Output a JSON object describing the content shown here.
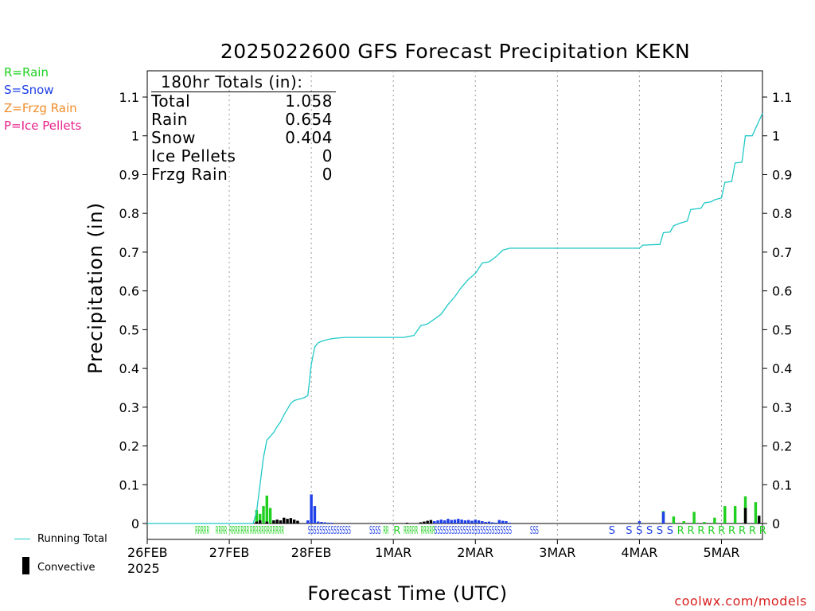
{
  "chart_data": {
    "type": "bar",
    "title": "2025022600 GFS Forecast Precipitation KEKN",
    "xlabel": "Forecast Time (UTC)",
    "ylabel": "Precipitation (in)",
    "ylim": [
      0,
      1.15
    ],
    "yticks": [
      "0",
      "0.1",
      "0.2",
      "0.3",
      "0.4",
      "0.5",
      "0.6",
      "0.7",
      "0.8",
      "0.9",
      "1",
      "1.1"
    ],
    "xlim_hours": [
      0,
      180
    ],
    "xticks": [
      {
        "hour": 0,
        "label": "26FEB"
      },
      {
        "hour": 24,
        "label": "27FEB"
      },
      {
        "hour": 48,
        "label": "28FEB"
      },
      {
        "hour": 72,
        "label": "1MAR"
      },
      {
        "hour": 96,
        "label": "2MAR"
      },
      {
        "hour": 120,
        "label": "3MAR"
      },
      {
        "hour": 144,
        "label": "4MAR"
      },
      {
        "hour": 168,
        "label": "5MAR"
      }
    ],
    "year_label": "2025",
    "grid": "vertical dotted at day boundaries",
    "series": [
      {
        "name": "Running Total",
        "type": "line",
        "color": "#20c8c8",
        "points": [
          [
            0,
            0
          ],
          [
            31,
            0
          ],
          [
            32,
            0.03
          ],
          [
            33,
            0.1
          ],
          [
            34,
            0.17
          ],
          [
            35,
            0.215
          ],
          [
            36,
            0.225
          ],
          [
            37,
            0.235
          ],
          [
            38,
            0.25
          ],
          [
            39,
            0.262
          ],
          [
            40,
            0.28
          ],
          [
            41,
            0.295
          ],
          [
            42,
            0.31
          ],
          [
            43,
            0.317
          ],
          [
            44,
            0.32
          ],
          [
            45,
            0.322
          ],
          [
            46,
            0.325
          ],
          [
            47,
            0.33
          ],
          [
            48,
            0.41
          ],
          [
            49,
            0.455
          ],
          [
            50,
            0.466
          ],
          [
            51,
            0.47
          ],
          [
            53,
            0.475
          ],
          [
            55,
            0.478
          ],
          [
            58,
            0.48
          ],
          [
            72,
            0.48
          ],
          [
            75,
            0.48
          ],
          [
            78,
            0.485
          ],
          [
            80,
            0.51
          ],
          [
            82,
            0.515
          ],
          [
            84,
            0.527
          ],
          [
            86,
            0.54
          ],
          [
            88,
            0.565
          ],
          [
            90,
            0.585
          ],
          [
            92,
            0.61
          ],
          [
            94,
            0.63
          ],
          [
            96,
            0.645
          ],
          [
            98,
            0.672
          ],
          [
            100,
            0.675
          ],
          [
            102,
            0.688
          ],
          [
            104,
            0.705
          ],
          [
            106,
            0.71
          ],
          [
            144,
            0.71
          ],
          [
            145,
            0.718
          ],
          [
            150,
            0.72
          ],
          [
            151,
            0.75
          ],
          [
            153,
            0.752
          ],
          [
            154,
            0.768
          ],
          [
            156,
            0.775
          ],
          [
            158,
            0.78
          ],
          [
            159,
            0.81
          ],
          [
            162,
            0.813
          ],
          [
            163,
            0.827
          ],
          [
            165,
            0.83
          ],
          [
            166,
            0.835
          ],
          [
            168,
            0.84
          ],
          [
            169,
            0.88
          ],
          [
            171,
            0.882
          ],
          [
            172,
            0.93
          ],
          [
            174,
            0.932
          ],
          [
            175,
            1.0
          ],
          [
            177,
            1.0
          ],
          [
            180,
            1.058
          ]
        ]
      },
      {
        "name": "Rain",
        "type": "bar",
        "color": "#20d020",
        "bars": [
          [
            32,
            0.035
          ],
          [
            33,
            0.025
          ],
          [
            34,
            0.045
          ],
          [
            35,
            0.072
          ],
          [
            36,
            0.04
          ],
          [
            37,
            0.008
          ],
          [
            151,
            0.032
          ],
          [
            154,
            0.018
          ],
          [
            157,
            0.006
          ],
          [
            160,
            0.03
          ],
          [
            163,
            0.004
          ],
          [
            166,
            0.015
          ],
          [
            169,
            0.045
          ],
          [
            172,
            0.045
          ],
          [
            175,
            0.07
          ],
          [
            178,
            0.055
          ]
        ]
      },
      {
        "name": "Snow",
        "type": "bar",
        "color": "#2040e8",
        "bars": [
          [
            47,
            0.008
          ],
          [
            48,
            0.075
          ],
          [
            49,
            0.045
          ],
          [
            50,
            0.005
          ],
          [
            51,
            0.004
          ],
          [
            52,
            0.003
          ],
          [
            53,
            0.002
          ],
          [
            54,
            0.002
          ],
          [
            84,
            0.006
          ],
          [
            85,
            0.008
          ],
          [
            86,
            0.01
          ],
          [
            87,
            0.008
          ],
          [
            88,
            0.012
          ],
          [
            89,
            0.009
          ],
          [
            90,
            0.01
          ],
          [
            91,
            0.012
          ],
          [
            92,
            0.01
          ],
          [
            93,
            0.008
          ],
          [
            94,
            0.009
          ],
          [
            95,
            0.007
          ],
          [
            96,
            0.01
          ],
          [
            97,
            0.008
          ],
          [
            98,
            0.006
          ],
          [
            99,
            0.004
          ],
          [
            100,
            0.005
          ],
          [
            101,
            0.003
          ],
          [
            102,
            0.002
          ],
          [
            103,
            0.009
          ],
          [
            104,
            0.007
          ],
          [
            105,
            0.006
          ],
          [
            106,
            0.002
          ],
          [
            144,
            0.006
          ],
          [
            151,
            0.03
          ]
        ]
      },
      {
        "name": "Convective",
        "type": "bar",
        "color": "#000000",
        "bars": [
          [
            32,
            0.005
          ],
          [
            33,
            0.008
          ],
          [
            35,
            0.005
          ],
          [
            37,
            0.008
          ],
          [
            38,
            0.01
          ],
          [
            39,
            0.008
          ],
          [
            40,
            0.015
          ],
          [
            41,
            0.012
          ],
          [
            42,
            0.014
          ],
          [
            43,
            0.01
          ],
          [
            44,
            0.007
          ],
          [
            76,
            0.002
          ],
          [
            80,
            0.003
          ],
          [
            81,
            0.005
          ],
          [
            82,
            0.007
          ],
          [
            83,
            0.009
          ],
          [
            175,
            0.04
          ],
          [
            179,
            0.02
          ]
        ]
      }
    ],
    "ptype_markers": [
      {
        "hour": 14,
        "text": "RRRRR",
        "color": "#20d020"
      },
      {
        "hour": 20,
        "text": "RRRR",
        "color": "#20d020"
      },
      {
        "hour": 24,
        "text": "RRRRRRR",
        "color": "#20d020"
      },
      {
        "hour": 30,
        "text": "RRRRRRRRRRRR",
        "color": "#20d020"
      },
      {
        "hour": 47,
        "text": "SSSSSSSSSSSSSSS",
        "color": "#2040e8"
      },
      {
        "hour": 65,
        "text": "SSSS",
        "color": "#2040e8"
      },
      {
        "hour": 69,
        "text": "RR",
        "color": "#20d020"
      },
      {
        "hour": 72,
        "text": "R",
        "color": "#20d020"
      },
      {
        "hour": 75,
        "text": "RRRRR",
        "color": "#20d020"
      },
      {
        "hour": 80,
        "text": "RRRRR",
        "color": "#20d020"
      },
      {
        "hour": 84,
        "text": "SSSSSSSSSSSSSSSSSSSSSSSSSSS",
        "color": "#2040e8"
      },
      {
        "hour": 112,
        "text": "SSS",
        "color": "#2040e8"
      },
      {
        "hour": 135,
        "text": "S",
        "color": "#2040e8"
      },
      {
        "hour": 140,
        "text": "S",
        "color": "#2040e8"
      },
      {
        "hour": 143,
        "text": "S",
        "color": "#2040e8"
      },
      {
        "hour": 146,
        "text": "S",
        "color": "#2040e8"
      },
      {
        "hour": 149,
        "text": "S",
        "color": "#2040e8"
      },
      {
        "hour": 152,
        "text": "S",
        "color": "#2040e8"
      },
      {
        "hour": 155,
        "text": "R",
        "color": "#20d020"
      },
      {
        "hour": 158,
        "text": "R",
        "color": "#20d020"
      },
      {
        "hour": 161,
        "text": "R",
        "color": "#20d020"
      },
      {
        "hour": 164,
        "text": "R",
        "color": "#20d020"
      },
      {
        "hour": 167,
        "text": "R",
        "color": "#20d020"
      },
      {
        "hour": 170,
        "text": "R",
        "color": "#20d020"
      },
      {
        "hour": 173,
        "text": "R",
        "color": "#20d020"
      },
      {
        "hour": 176,
        "text": "R",
        "color": "#20d020"
      },
      {
        "hour": 179,
        "text": "R",
        "color": "#20d020"
      }
    ]
  },
  "totals": {
    "header": "180hr Totals (in):",
    "rows": [
      {
        "label": "Total",
        "value": "1.058"
      },
      {
        "label": "Rain",
        "value": "0.654"
      },
      {
        "label": "Snow",
        "value": "0.404"
      },
      {
        "label": "Ice Pellets",
        "value": "0"
      },
      {
        "label": "Frzg Rain",
        "value": "0"
      }
    ]
  },
  "ptype_key": [
    {
      "text": "R=Rain",
      "color": "#20d020"
    },
    {
      "text": "S=Snow",
      "color": "#2040e8"
    },
    {
      "text": "Z=Frzg Rain",
      "color": "#f08c28"
    },
    {
      "text": "P=Ice Pellets",
      "color": "#e8208c"
    }
  ],
  "legend": {
    "running_total": "Running Total",
    "convective": "Convective",
    "running_total_color": "#20c8c8",
    "convective_color": "#000000"
  },
  "watermark": "coolwx.com/models"
}
